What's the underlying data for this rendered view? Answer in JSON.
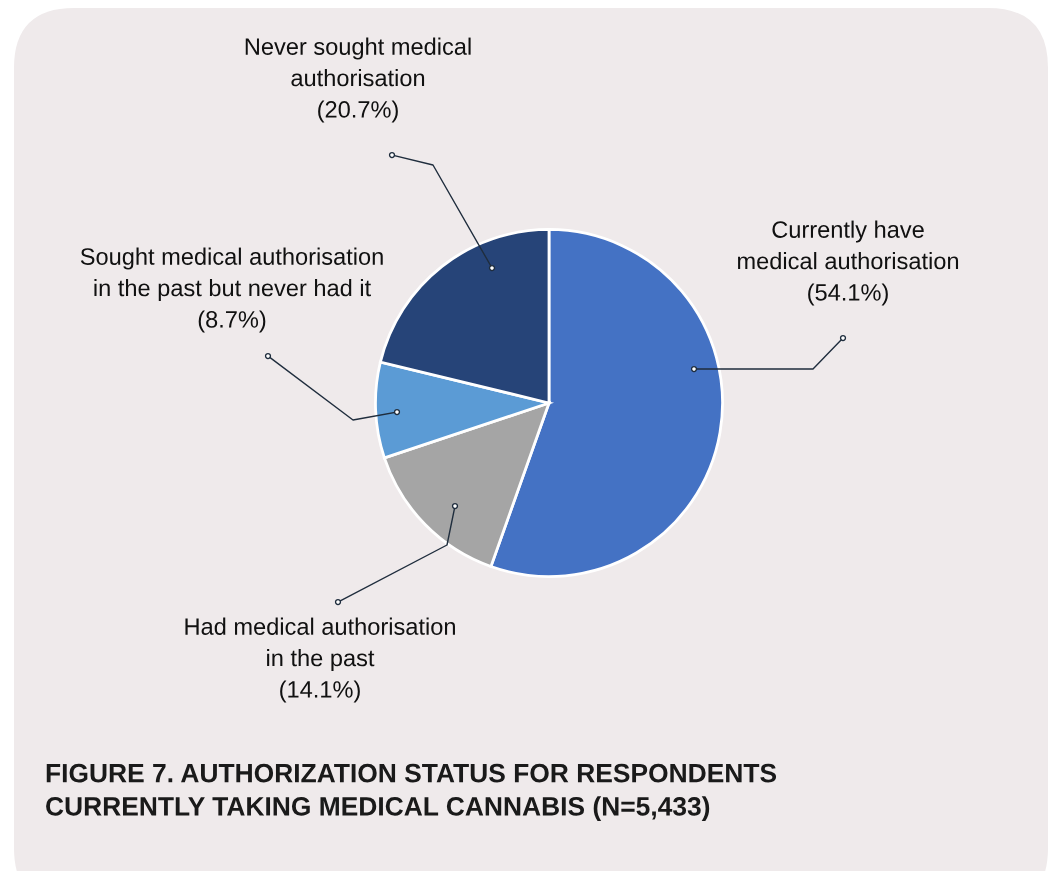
{
  "chart_data": {
    "type": "pie",
    "title": "FIGURE 7. AUTHORIZATION STATUS FOR RESPONDENTS\nCURRENTLY TAKING MEDICAL CANNABIS (N=5,433)",
    "categories": [
      "Currently have\nmedical authorisation",
      "Had medical authorisation\nin the past",
      "Sought medical authorisation\nin the past but never had it",
      "Never sought medical\nauthorisation"
    ],
    "values": [
      54.1,
      14.1,
      8.7,
      20.7
    ],
    "value_labels": [
      "(54.1%)",
      "(14.1%)",
      "(8.7%)",
      "(20.7%)"
    ],
    "colors": [
      "#4472c4",
      "#a5a5a5",
      "#5b9bd5",
      "#264478"
    ],
    "legend": false
  }
}
